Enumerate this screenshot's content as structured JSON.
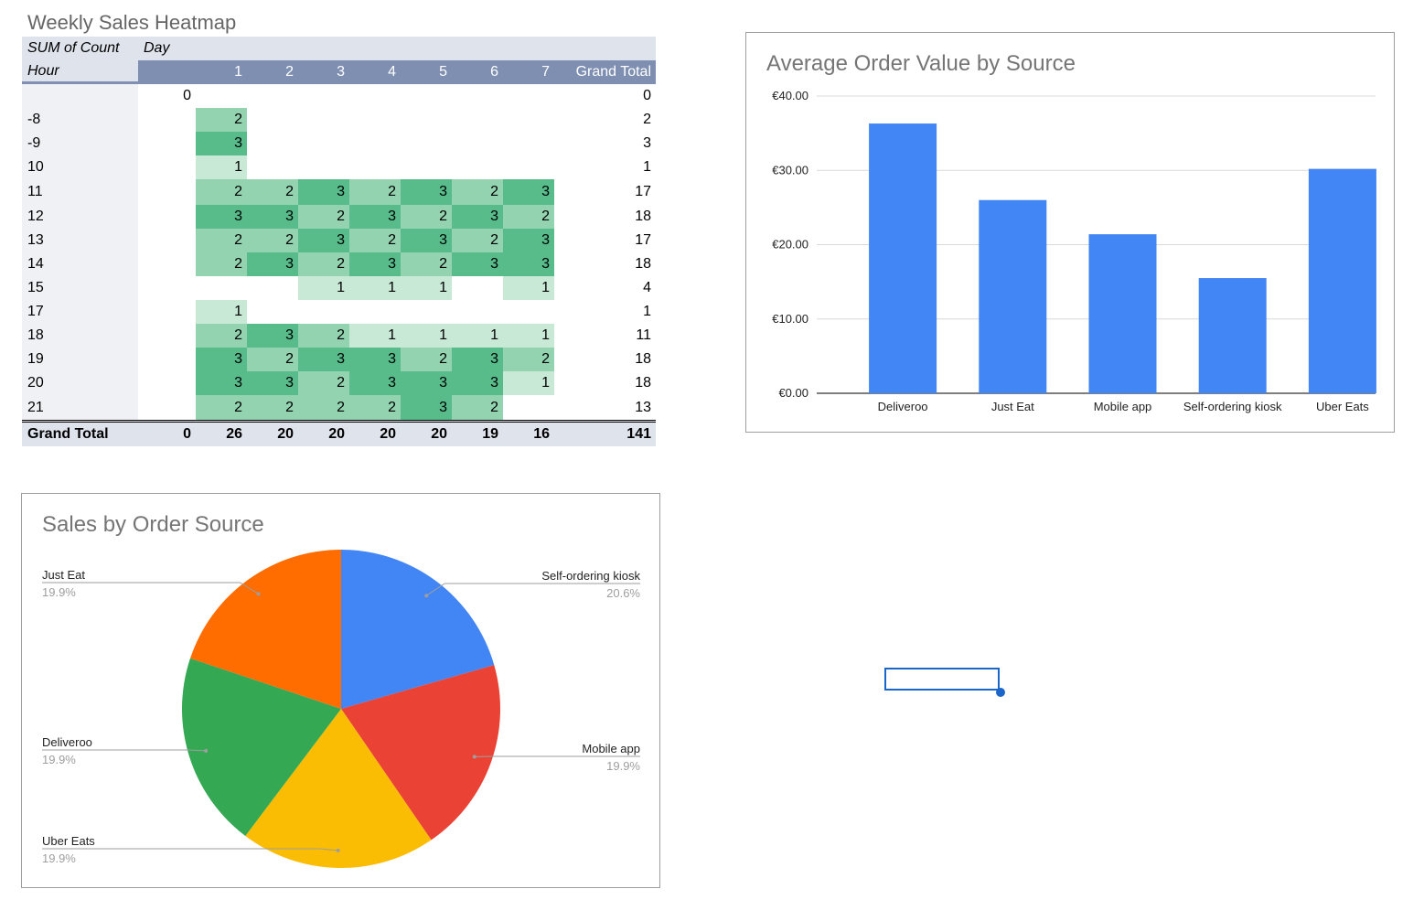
{
  "pivot": {
    "title": "Weekly Sales Heatmap",
    "value_label": "SUM of Count",
    "column_field": "Day",
    "row_field": "Hour",
    "columns": [
      "",
      "1",
      "2",
      "3",
      "4",
      "5",
      "6",
      "7",
      "Grand Total"
    ],
    "rows": [
      {
        "label": "",
        "cells": [
          "0",
          "",
          "",
          "",
          "",
          "",
          "",
          ""
        ],
        "total": "0"
      },
      {
        "label": "-8",
        "cells": [
          "",
          "2",
          "",
          "",
          "",
          "",
          "",
          ""
        ],
        "total": "2"
      },
      {
        "label": "-9",
        "cells": [
          "",
          "3",
          "",
          "",
          "",
          "",
          "",
          ""
        ],
        "total": "3"
      },
      {
        "label": "10",
        "cells": [
          "",
          "1",
          "",
          "",
          "",
          "",
          "",
          ""
        ],
        "total": "1"
      },
      {
        "label": "11",
        "cells": [
          "",
          "2",
          "2",
          "3",
          "2",
          "3",
          "2",
          "3"
        ],
        "total": "17"
      },
      {
        "label": "12",
        "cells": [
          "",
          "3",
          "3",
          "2",
          "3",
          "2",
          "3",
          "2"
        ],
        "total": "18"
      },
      {
        "label": "13",
        "cells": [
          "",
          "2",
          "2",
          "3",
          "2",
          "3",
          "2",
          "3"
        ],
        "total": "17"
      },
      {
        "label": "14",
        "cells": [
          "",
          "2",
          "3",
          "2",
          "3",
          "2",
          "3",
          "3"
        ],
        "total": "18"
      },
      {
        "label": "15",
        "cells": [
          "",
          "",
          "",
          "1",
          "1",
          "1",
          "",
          "1"
        ],
        "total": "4"
      },
      {
        "label": "17",
        "cells": [
          "",
          "1",
          "",
          "",
          "",
          "",
          "",
          ""
        ],
        "total": "1"
      },
      {
        "label": "18",
        "cells": [
          "",
          "2",
          "3",
          "2",
          "1",
          "1",
          "1",
          "1"
        ],
        "total": "11"
      },
      {
        "label": "19",
        "cells": [
          "",
          "3",
          "2",
          "3",
          "3",
          "2",
          "3",
          "2"
        ],
        "total": "18"
      },
      {
        "label": "20",
        "cells": [
          "",
          "3",
          "3",
          "2",
          "3",
          "3",
          "3",
          "1"
        ],
        "total": "18"
      },
      {
        "label": "21",
        "cells": [
          "",
          "2",
          "2",
          "2",
          "2",
          "3",
          "2",
          ""
        ],
        "total": "13"
      }
    ],
    "grand_total": {
      "label": "Grand Total",
      "cells": [
        "0",
        "26",
        "20",
        "20",
        "20",
        "20",
        "19",
        "16"
      ],
      "total": "141"
    },
    "heat_colors": {
      "1": "#c8e9d6",
      "2": "#93d3af",
      "3": "#57bb8a"
    }
  },
  "chart_data": [
    {
      "type": "bar",
      "title": "Average Order Value by Source",
      "categories": [
        "Deliveroo",
        "Just Eat",
        "Mobile app",
        "Self-ordering kiosk",
        "Uber Eats"
      ],
      "values": [
        36.3,
        26.0,
        21.4,
        15.5,
        30.2
      ],
      "ylim": [
        0,
        40
      ],
      "yticks": [
        "€0.00",
        "€10.00",
        "€20.00",
        "€30.00",
        "€40.00"
      ],
      "ytick_values": [
        0,
        10,
        20,
        30,
        40
      ],
      "color": "#4285f4",
      "xlabel": "",
      "ylabel": ""
    },
    {
      "type": "pie",
      "title": "Sales by Order Source",
      "slices": [
        {
          "label": "Self-ordering kiosk",
          "pct_label": "20.6%",
          "value": 20.6,
          "color": "#4285f4"
        },
        {
          "label": "Mobile app",
          "pct_label": "19.9%",
          "value": 19.9,
          "color": "#ea4335"
        },
        {
          "label": "Uber Eats",
          "pct_label": "19.9%",
          "value": 19.9,
          "color": "#fbbc04"
        },
        {
          "label": "Deliveroo",
          "pct_label": "19.9%",
          "value": 19.9,
          "color": "#34a853"
        },
        {
          "label": "Just Eat",
          "pct_label": "19.9%",
          "value": 19.9,
          "color": "#ff6d01"
        }
      ]
    }
  ]
}
